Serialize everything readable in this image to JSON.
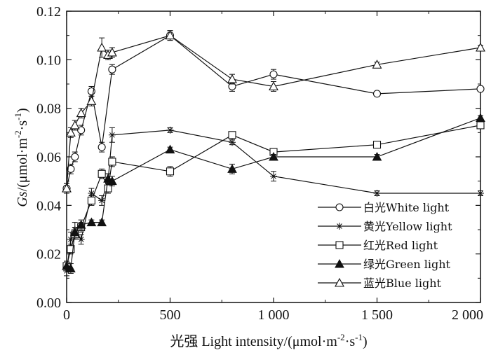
{
  "chart_data": {
    "type": "line",
    "title": "",
    "xlabel": "光强 Light intensity/(μmol·m⁻²·s⁻¹)",
    "ylabel": "Gs/(μmol·m⁻²·s⁻¹)",
    "xlabel_parts": {
      "prefix": "光强 Light intensity/(μmol·m",
      "exp1": "-2",
      "mid": "·s",
      "exp2": "-1",
      "suffix": ")"
    },
    "ylabel_parts": {
      "italic": "Gs",
      "prefix": "/(μmol·m",
      "exp1": "-2",
      "mid": "·s",
      "exp2": "-1",
      "suffix": ")"
    },
    "xlim": [
      0,
      2000
    ],
    "ylim": [
      0,
      0.12
    ],
    "xticks": [
      {
        "value": 0,
        "label": "0"
      },
      {
        "value": 500,
        "label": "500"
      },
      {
        "value": 1000,
        "label": "1 000"
      },
      {
        "value": 1500,
        "label": "1 500"
      },
      {
        "value": 2000,
        "label": "2 000"
      }
    ],
    "yticks": [
      {
        "value": 0,
        "label": "0.00"
      },
      {
        "value": 0.02,
        "label": "0.02"
      },
      {
        "value": 0.04,
        "label": "0.04"
      },
      {
        "value": 0.06,
        "label": "0.06"
      },
      {
        "value": 0.08,
        "label": "0.08"
      },
      {
        "value": 0.1,
        "label": "0.10"
      },
      {
        "value": 0.12,
        "label": "0.12"
      }
    ],
    "legend_position": "bottom-right",
    "series": [
      {
        "name": "白光White light",
        "marker": "circle",
        "x": [
          0,
          20,
          40,
          70,
          120,
          170,
          220,
          500,
          800,
          1000,
          1500,
          2000
        ],
        "y": [
          0.047,
          0.055,
          0.06,
          0.071,
          0.087,
          0.064,
          0.096,
          0.11,
          0.089,
          0.094,
          0.086,
          0.088
        ],
        "err": [
          0.002,
          0.002,
          0.002,
          0.002,
          0.002,
          0.002,
          0.002,
          0.002,
          0.002,
          0.002,
          0.001,
          0.001
        ]
      },
      {
        "name": "黄光Yellow light",
        "marker": "star",
        "x": [
          0,
          20,
          40,
          70,
          120,
          170,
          200,
          220,
          500,
          800,
          1000,
          1500,
          2000
        ],
        "y": [
          0.013,
          0.026,
          0.03,
          0.026,
          0.045,
          0.042,
          0.05,
          0.069,
          0.071,
          0.066,
          0.052,
          0.045,
          0.045
        ],
        "err": [
          0.002,
          0.003,
          0.003,
          0.002,
          0.002,
          0.002,
          0.003,
          0.003,
          0.001,
          0.001,
          0.002,
          0.001,
          0.001
        ]
      },
      {
        "name": "红光Red light",
        "marker": "square",
        "x": [
          0,
          20,
          40,
          70,
          120,
          170,
          200,
          220,
          500,
          800,
          1000,
          1500,
          2000
        ],
        "y": [
          0.015,
          0.022,
          0.028,
          0.031,
          0.042,
          0.053,
          0.047,
          0.058,
          0.054,
          0.069,
          0.062,
          0.065,
          0.073
        ],
        "err": [
          0.002,
          0.002,
          0.002,
          0.002,
          0.002,
          0.002,
          0.002,
          0.002,
          0.002,
          0.001,
          0.001,
          0.001,
          0.001
        ]
      },
      {
        "name": "绿光Green light",
        "marker": "triangle-filled",
        "x": [
          0,
          20,
          40,
          70,
          120,
          170,
          200,
          220,
          500,
          800,
          1000,
          1500,
          2000
        ],
        "y": [
          0.015,
          0.014,
          0.029,
          0.032,
          0.033,
          0.033,
          0.051,
          0.05,
          0.063,
          0.055,
          0.06,
          0.06,
          0.076
        ],
        "err": [
          0.002,
          0.002,
          0.002,
          0.002,
          0.001,
          0.001,
          0.002,
          0.002,
          0.001,
          0.002,
          0.001,
          0.001,
          0.001
        ]
      },
      {
        "name": "蓝光Blue light",
        "marker": "triangle-open",
        "x": [
          0,
          20,
          40,
          70,
          120,
          170,
          200,
          220,
          500,
          800,
          1000,
          1500,
          2000
        ],
        "y": [
          0.047,
          0.07,
          0.073,
          0.078,
          0.083,
          0.105,
          0.102,
          0.103,
          0.11,
          0.092,
          0.089,
          0.098,
          0.105
        ],
        "err": [
          0.002,
          0.002,
          0.002,
          0.002,
          0.002,
          0.004,
          0.002,
          0.002,
          0.002,
          0.002,
          0.002,
          0.001,
          0.001
        ]
      }
    ]
  }
}
